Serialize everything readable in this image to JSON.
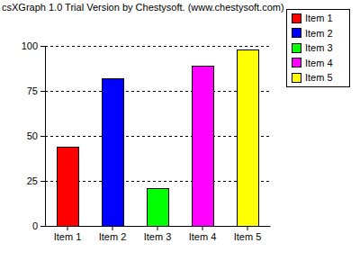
{
  "chart_data": {
    "type": "bar",
    "title": "csXGraph 1.0 Trial Version by Chestysoft. (www.chestysoft.com)",
    "categories": [
      "Item 1",
      "Item 2",
      "Item 3",
      "Item 4",
      "Item 5"
    ],
    "values": [
      44,
      82,
      21,
      89,
      98
    ],
    "colors": [
      "#ff0000",
      "#0000ff",
      "#00ff00",
      "#ff00ff",
      "#ffff00"
    ],
    "ylim": [
      0,
      100
    ],
    "yticks": [
      0,
      25,
      50,
      75,
      100
    ],
    "grid": true,
    "legend": "top-right"
  }
}
